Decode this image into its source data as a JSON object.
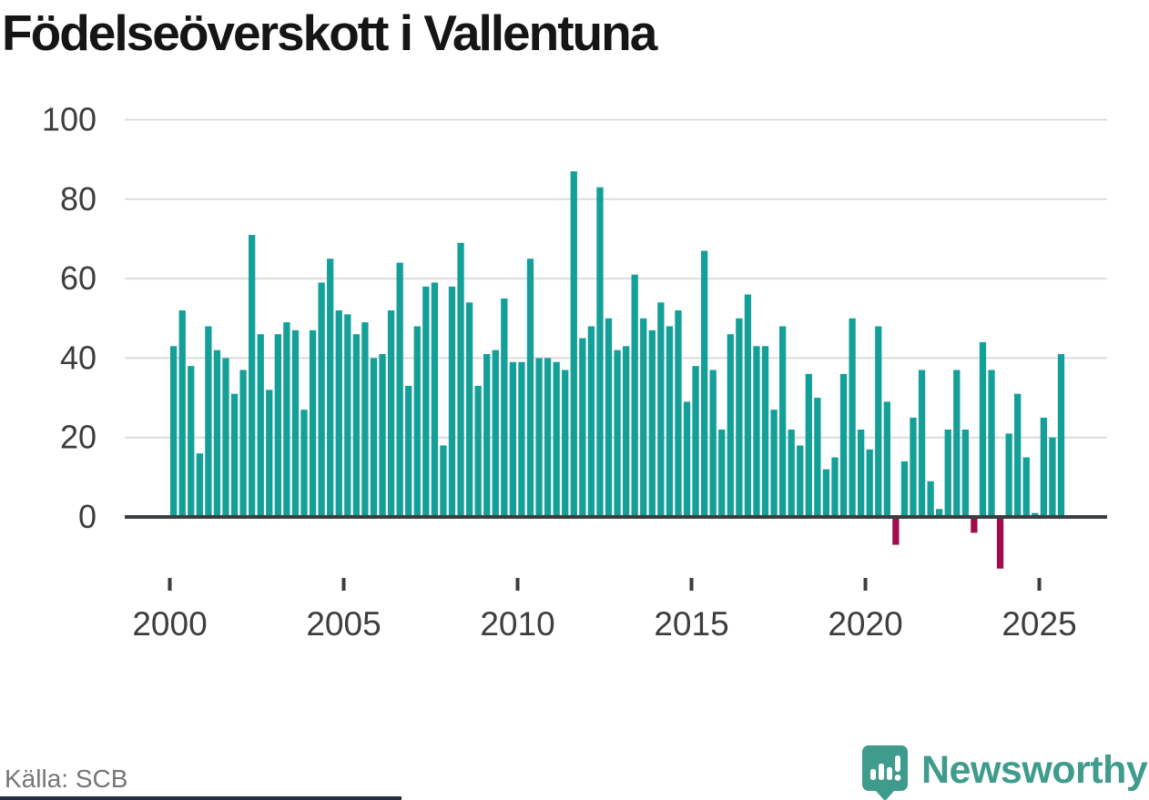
{
  "title": "Födelseöverskott i Vallentuna",
  "footer": {
    "source": "Källa: SCB",
    "brand": "Newsworthy"
  },
  "colors": {
    "positive_bar": "#14A098",
    "negative_bar": "#A00D4B",
    "brand": "#3F9B8C",
    "axis_line": "#3A3E40",
    "gridline": "#DCDCDC",
    "tick_label": "#3D3D3D",
    "source_text": "#767676",
    "footer_strip": "#243040",
    "title_text": "#151515"
  },
  "chart_data": {
    "type": "bar",
    "title": "Födelseöverskott i Vallentuna",
    "xlabel": "",
    "ylabel": "",
    "period": "quarterly",
    "grid": true,
    "legend": false,
    "y_ticks": [
      0,
      20,
      40,
      60,
      80,
      100
    ],
    "ylim": [
      -16,
      100
    ],
    "x_tick_labels": [
      "2000",
      "2005",
      "2010",
      "2015",
      "2020",
      "2025"
    ],
    "x": [
      "2000Q1",
      "2000Q2",
      "2000Q3",
      "2000Q4",
      "2001Q1",
      "2001Q2",
      "2001Q3",
      "2001Q4",
      "2002Q1",
      "2002Q2",
      "2002Q3",
      "2002Q4",
      "2003Q1",
      "2003Q2",
      "2003Q3",
      "2003Q4",
      "2004Q1",
      "2004Q2",
      "2004Q3",
      "2004Q4",
      "2005Q1",
      "2005Q2",
      "2005Q3",
      "2005Q4",
      "2006Q1",
      "2006Q2",
      "2006Q3",
      "2006Q4",
      "2007Q1",
      "2007Q2",
      "2007Q3",
      "2007Q4",
      "2008Q1",
      "2008Q2",
      "2008Q3",
      "2008Q4",
      "2009Q1",
      "2009Q2",
      "2009Q3",
      "2009Q4",
      "2010Q1",
      "2010Q2",
      "2010Q3",
      "2010Q4",
      "2011Q1",
      "2011Q2",
      "2011Q3",
      "2011Q4",
      "2012Q1",
      "2012Q2",
      "2012Q3",
      "2012Q4",
      "2013Q1",
      "2013Q2",
      "2013Q3",
      "2013Q4",
      "2014Q1",
      "2014Q2",
      "2014Q3",
      "2014Q4",
      "2015Q1",
      "2015Q2",
      "2015Q3",
      "2015Q4",
      "2016Q1",
      "2016Q2",
      "2016Q3",
      "2016Q4",
      "2017Q1",
      "2017Q2",
      "2017Q3",
      "2017Q4",
      "2018Q1",
      "2018Q2",
      "2018Q3",
      "2018Q4",
      "2019Q1",
      "2019Q2",
      "2019Q3",
      "2019Q4",
      "2020Q1",
      "2020Q2",
      "2020Q3",
      "2020Q4",
      "2021Q1",
      "2021Q2",
      "2021Q3",
      "2021Q4",
      "2022Q1",
      "2022Q2",
      "2022Q3",
      "2022Q4",
      "2023Q1",
      "2023Q2",
      "2023Q3",
      "2023Q4",
      "2024Q1",
      "2024Q2",
      "2024Q3",
      "2024Q4",
      "2025Q1",
      "2025Q2",
      "2025Q3"
    ],
    "series": [
      {
        "name": "Födelseöverskott",
        "values": [
          43,
          52,
          38,
          16,
          48,
          42,
          40,
          31,
          37,
          71,
          46,
          32,
          46,
          49,
          47,
          27,
          47,
          59,
          65,
          52,
          51,
          46,
          49,
          40,
          41,
          52,
          64,
          33,
          48,
          58,
          59,
          18,
          58,
          69,
          54,
          33,
          41,
          42,
          55,
          39,
          39,
          65,
          40,
          40,
          39,
          37,
          87,
          45,
          48,
          83,
          50,
          42,
          43,
          61,
          50,
          47,
          54,
          48,
          52,
          29,
          38,
          67,
          37,
          22,
          46,
          50,
          56,
          43,
          43,
          27,
          48,
          22,
          18,
          36,
          30,
          12,
          15,
          36,
          50,
          22,
          17,
          48,
          29,
          -7,
          14,
          25,
          37,
          9,
          2,
          22,
          37,
          22,
          -4,
          44,
          37,
          -13,
          21,
          31,
          15,
          1,
          25,
          20,
          41
        ]
      }
    ]
  }
}
